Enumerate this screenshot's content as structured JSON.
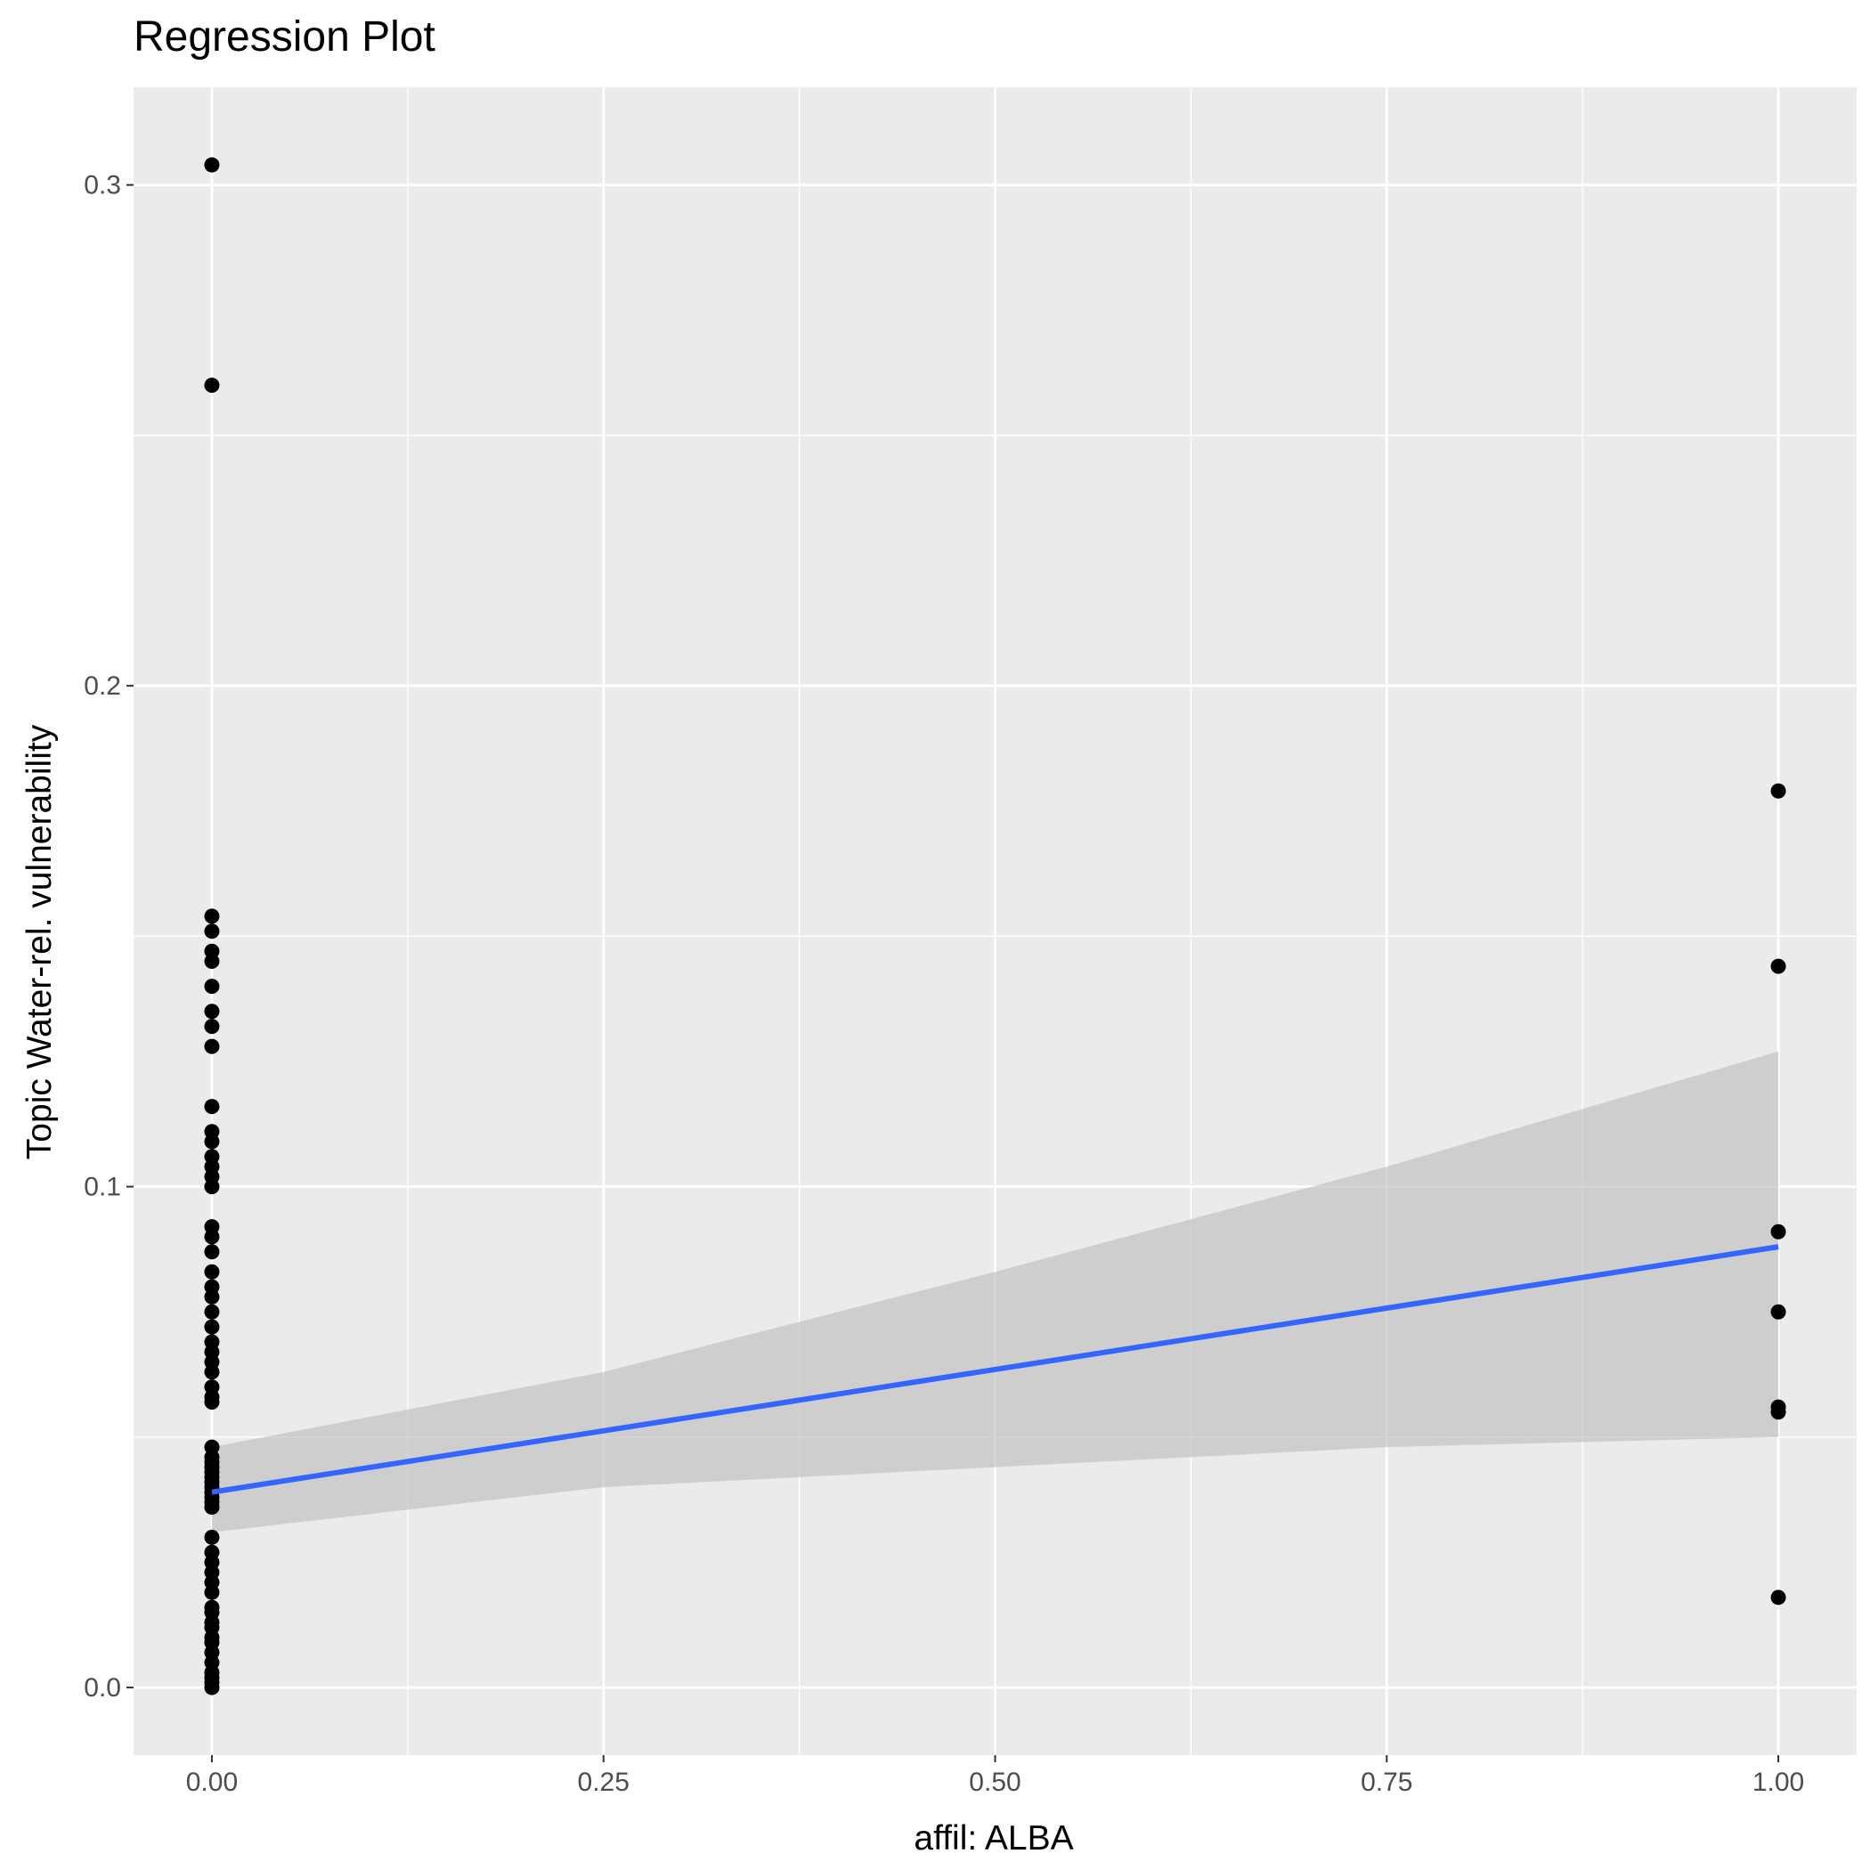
{
  "chart_data": {
    "type": "scatter",
    "title": "Regression Plot",
    "xlabel": "affil: ALBA",
    "ylabel": "Topic Water-rel. vulnerability",
    "xlim": [
      -0.05,
      1.05
    ],
    "ylim": [
      -0.0135,
      0.3195
    ],
    "x_ticks": [
      0.0,
      0.25,
      0.5,
      0.75,
      1.0
    ],
    "x_tick_labels": [
      "0.00",
      "0.25",
      "0.50",
      "0.75",
      "1.00"
    ],
    "y_ticks": [
      0.0,
      0.1,
      0.2,
      0.3
    ],
    "y_tick_labels": [
      "0.0",
      "0.1",
      "0.2",
      "0.3"
    ],
    "grid": true,
    "background": "#ebebeb",
    "colors": {
      "points": "#000000",
      "fit_line": "#3366ff",
      "ribbon": "#bfbfbf",
      "grid": "#ffffff"
    },
    "points": [
      {
        "x": 0,
        "y": 0.304
      },
      {
        "x": 0,
        "y": 0.26
      },
      {
        "x": 0,
        "y": 0.154
      },
      {
        "x": 0,
        "y": 0.151
      },
      {
        "x": 0,
        "y": 0.147
      },
      {
        "x": 0,
        "y": 0.145
      },
      {
        "x": 0,
        "y": 0.14
      },
      {
        "x": 0,
        "y": 0.135
      },
      {
        "x": 0,
        "y": 0.132
      },
      {
        "x": 0,
        "y": 0.128
      },
      {
        "x": 0,
        "y": 0.116
      },
      {
        "x": 0,
        "y": 0.111
      },
      {
        "x": 0,
        "y": 0.109
      },
      {
        "x": 0,
        "y": 0.106
      },
      {
        "x": 0,
        "y": 0.104
      },
      {
        "x": 0,
        "y": 0.102
      },
      {
        "x": 0,
        "y": 0.1
      },
      {
        "x": 0,
        "y": 0.092
      },
      {
        "x": 0,
        "y": 0.09
      },
      {
        "x": 0,
        "y": 0.087
      },
      {
        "x": 0,
        "y": 0.083
      },
      {
        "x": 0,
        "y": 0.08
      },
      {
        "x": 0,
        "y": 0.078
      },
      {
        "x": 0,
        "y": 0.075
      },
      {
        "x": 0,
        "y": 0.072
      },
      {
        "x": 0,
        "y": 0.069
      },
      {
        "x": 0,
        "y": 0.067
      },
      {
        "x": 0,
        "y": 0.065
      },
      {
        "x": 0,
        "y": 0.063
      },
      {
        "x": 0,
        "y": 0.06
      },
      {
        "x": 0,
        "y": 0.058
      },
      {
        "x": 0,
        "y": 0.057
      },
      {
        "x": 0,
        "y": 0.048
      },
      {
        "x": 0,
        "y": 0.046
      },
      {
        "x": 0,
        "y": 0.045
      },
      {
        "x": 0,
        "y": 0.044
      },
      {
        "x": 0,
        "y": 0.043
      },
      {
        "x": 0,
        "y": 0.042
      },
      {
        "x": 0,
        "y": 0.041
      },
      {
        "x": 0,
        "y": 0.04
      },
      {
        "x": 0,
        "y": 0.039
      },
      {
        "x": 0,
        "y": 0.038
      },
      {
        "x": 0,
        "y": 0.037
      },
      {
        "x": 0,
        "y": 0.036
      },
      {
        "x": 0,
        "y": 0.03
      },
      {
        "x": 0,
        "y": 0.027
      },
      {
        "x": 0,
        "y": 0.025
      },
      {
        "x": 0,
        "y": 0.023
      },
      {
        "x": 0,
        "y": 0.021
      },
      {
        "x": 0,
        "y": 0.019
      },
      {
        "x": 0,
        "y": 0.016
      },
      {
        "x": 0,
        "y": 0.015
      },
      {
        "x": 0,
        "y": 0.013
      },
      {
        "x": 0,
        "y": 0.012
      },
      {
        "x": 0,
        "y": 0.01
      },
      {
        "x": 0,
        "y": 0.009
      },
      {
        "x": 0,
        "y": 0.007
      },
      {
        "x": 0,
        "y": 0.005
      },
      {
        "x": 0,
        "y": 0.003
      },
      {
        "x": 0,
        "y": 0.002
      },
      {
        "x": 0,
        "y": 0.001
      },
      {
        "x": 0,
        "y": 0.0
      },
      {
        "x": 1,
        "y": 0.179
      },
      {
        "x": 1,
        "y": 0.144
      },
      {
        "x": 1,
        "y": 0.091
      },
      {
        "x": 1,
        "y": 0.075
      },
      {
        "x": 1,
        "y": 0.056
      },
      {
        "x": 1,
        "y": 0.055
      },
      {
        "x": 1,
        "y": 0.018
      }
    ],
    "fit_line": {
      "x": [
        0,
        1
      ],
      "y": [
        0.039,
        0.088
      ]
    },
    "confidence_band": {
      "x": [
        0,
        0.25,
        0.5,
        0.75,
        1.0
      ],
      "lower": [
        0.031,
        0.04,
        0.044,
        0.048,
        0.05
      ],
      "upper": [
        0.048,
        0.063,
        0.083,
        0.104,
        0.127
      ]
    }
  }
}
